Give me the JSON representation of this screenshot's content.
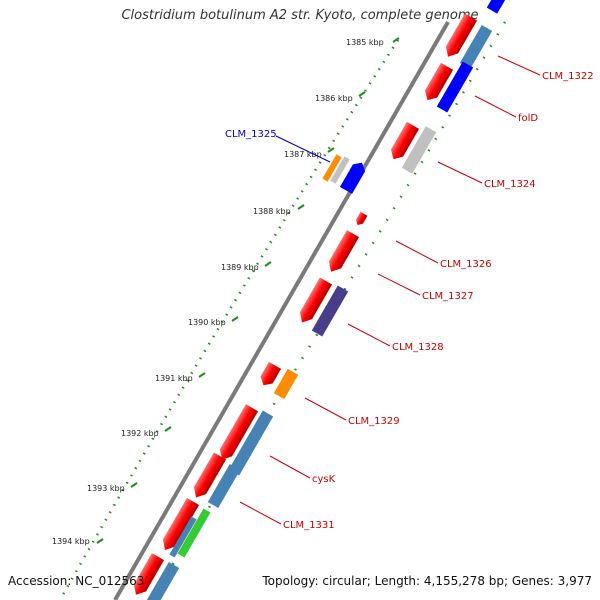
{
  "header": {
    "title": "Clostridium botulinum A2 str. Kyoto, complete genome"
  },
  "footer": {
    "accession": "Accession: NC_012563",
    "topology": "Topology: circular; Length: 4,155,278 bp; Genes: 3,977"
  },
  "ruler": {
    "labels": [
      "1385 kbp",
      "1386 kbp",
      "1387 kbp",
      "1388 kbp",
      "1389 kbp",
      "1390 kbp",
      "1391 kbp",
      "1392 kbp",
      "1393 kbp",
      "1394 kbp"
    ]
  },
  "gene_labels": [
    {
      "text": "CLM_1322",
      "color": "#cc0000"
    },
    {
      "text": "folD",
      "color": "#cc0000"
    },
    {
      "text": "CLM_1325",
      "color": "#0000cc"
    },
    {
      "text": "CLM_1324",
      "color": "#cc0000"
    },
    {
      "text": "CLM_1326",
      "color": "#cc0000"
    },
    {
      "text": "CLM_1327",
      "color": "#cc0000"
    },
    {
      "text": "CLM_1328",
      "color": "#cc0000"
    },
    {
      "text": "CLM_1329",
      "color": "#cc0000"
    },
    {
      "text": "cysK",
      "color": "#cc0000"
    },
    {
      "text": "CLM_1331",
      "color": "#cc0000"
    }
  ],
  "colors": {
    "cds": "#ff0000",
    "blue": "#0000ff",
    "steelblue": "#4682b4",
    "gray": "#c0c0c0",
    "orange": "#ff8c00",
    "purple": "#483d8b",
    "green": "#33cc33",
    "backbone": "#808080",
    "ticks": "#228b22"
  }
}
